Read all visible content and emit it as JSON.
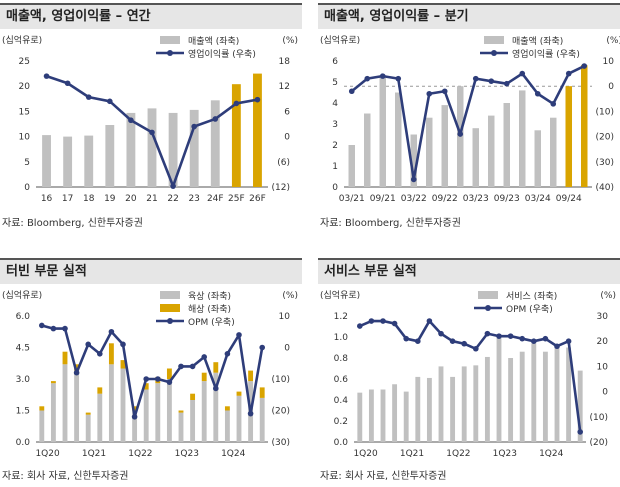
{
  "charts": [
    {
      "id": "c1",
      "title": "매출액, 영업이익률 – 연간",
      "unit_left": "(십억유로)",
      "unit_right": "(%)",
      "source": "자료: Bloomberg, 신한투자증권",
      "chart_data": {
        "type": "bar",
        "categories": [
          "16",
          "17",
          "18",
          "19",
          "20",
          "21",
          "22",
          "23",
          "24F",
          "25F",
          "26F"
        ],
        "ylim_left": [
          0,
          25
        ],
        "yticks_left": [
          0,
          5,
          10,
          15,
          20,
          25
        ],
        "ylim_right": [
          -12,
          18
        ],
        "yticks_right": [
          -12,
          -6,
          0,
          6,
          12,
          18
        ],
        "ytick_labels_right": [
          "(12)",
          "(6)",
          "0",
          "6",
          "12",
          "18"
        ],
        "series": [
          {
            "name": "매출액 (좌축)",
            "type": "bar",
            "axis": "left",
            "values": [
              10.3,
              10.0,
              10.2,
              12.3,
              14.7,
              15.6,
              14.7,
              15.3,
              17.2,
              20.4,
              22.5
            ],
            "colors": [
              "#c0c0c0",
              "#c0c0c0",
              "#c0c0c0",
              "#c0c0c0",
              "#c0c0c0",
              "#c0c0c0",
              "#c0c0c0",
              "#c0c0c0",
              "#c0c0c0",
              "#d9a400",
              "#d9a400"
            ]
          },
          {
            "name": "영업이익률 (우축)",
            "type": "line",
            "axis": "right",
            "color": "#2e3d7a",
            "values": [
              14.4,
              12.7,
              9.4,
              8.4,
              3.9,
              1.0,
              -11.8,
              2.4,
              4.2,
              7.9,
              8.8
            ]
          }
        ]
      }
    },
    {
      "id": "c2",
      "title": "매출액, 영업이익률 – 분기",
      "unit_left": "(십억유로)",
      "unit_right": "(%)",
      "source": "자료: Bloomberg, 신한투자증권",
      "chart_data": {
        "type": "bar",
        "categories": [
          "03/21",
          "06/21",
          "09/21",
          "12/21",
          "03/22",
          "06/22",
          "09/22",
          "12/22",
          "03/23",
          "06/23",
          "09/23",
          "12/23",
          "03/24",
          "06/24",
          "09/24",
          "12/24"
        ],
        "tick_labels": [
          "03/21",
          "09/21",
          "03/22",
          "09/22",
          "03/23",
          "09/23",
          "03/24",
          "09/24"
        ],
        "ylim_left": [
          0,
          6
        ],
        "yticks_left": [
          0,
          1,
          2,
          3,
          4,
          5,
          6
        ],
        "ylim_right": [
          -40,
          10
        ],
        "yticks_right": [
          -40,
          -30,
          -20,
          -10,
          0,
          10
        ],
        "ytick_labels_right": [
          "(40)",
          "(30)",
          "(20)",
          "(10)",
          "0",
          "10"
        ],
        "reference_line": {
          "axis": "right",
          "value": 0,
          "style": "dashed"
        },
        "series": [
          {
            "name": "매출액 (좌축)",
            "type": "bar",
            "axis": "left",
            "values": [
              2.0,
              3.5,
              5.2,
              4.5,
              2.5,
              3.3,
              3.9,
              4.8,
              2.8,
              3.4,
              4.0,
              4.6,
              2.7,
              3.3,
              4.8,
              5.8
            ],
            "colors": [
              "#c0c0c0",
              "#c0c0c0",
              "#c0c0c0",
              "#c0c0c0",
              "#c0c0c0",
              "#c0c0c0",
              "#c0c0c0",
              "#c0c0c0",
              "#c0c0c0",
              "#c0c0c0",
              "#c0c0c0",
              "#c0c0c0",
              "#c0c0c0",
              "#c0c0c0",
              "#d9a400",
              "#d9a400"
            ]
          },
          {
            "name": "영업이익률 (우축)",
            "type": "line",
            "axis": "right",
            "color": "#2e3d7a",
            "values": [
              -2,
              3,
              4,
              3,
              -37,
              -3,
              -2,
              -19,
              3,
              2,
              1,
              5,
              -3,
              -7,
              5,
              8
            ]
          }
        ]
      }
    },
    {
      "id": "c3",
      "title": "터빈 부문 실적",
      "unit_left": "(십억유로)",
      "unit_right": "(%)",
      "source": "자료: 회사 자료, 신한투자증권",
      "chart_data": {
        "type": "bar",
        "categories": [
          "1Q20",
          "2Q20",
          "3Q20",
          "4Q20",
          "1Q21",
          "2Q21",
          "3Q21",
          "4Q21",
          "1Q22",
          "2Q22",
          "3Q22",
          "4Q22",
          "1Q23",
          "2Q23",
          "3Q23",
          "4Q23",
          "1Q24",
          "2Q24",
          "3Q24",
          "4Q24"
        ],
        "tick_labels": [
          "1Q20",
          "",
          "",
          "",
          "1Q21",
          "",
          "",
          "",
          "1Q22",
          "",
          "",
          "",
          "1Q23",
          "",
          "",
          "",
          "1Q24",
          "",
          "",
          ""
        ],
        "ylim_left": [
          0,
          6.0
        ],
        "yticks_left": [
          0,
          1.5,
          3.0,
          4.5,
          6.0
        ],
        "ytick_labels_left": [
          "0.0",
          "1.5",
          "3.0",
          "4.5",
          "6.0"
        ],
        "ylim_right": [
          -30,
          10
        ],
        "yticks_right": [
          -30,
          -20,
          -10,
          0,
          10
        ],
        "ytick_labels_right": [
          "(30)",
          "(20)",
          "(10)",
          "0",
          "10"
        ],
        "stacked": true,
        "series": [
          {
            "name": "육상 (좌축)",
            "type": "bar",
            "axis": "left",
            "color": "#c0c0c0",
            "values": [
              1.5,
              2.8,
              3.7,
              3.4,
              1.3,
              2.3,
              3.7,
              3.5,
              1.5,
              2.5,
              2.8,
              3.0,
              1.4,
              2.0,
              2.9,
              3.3,
              1.5,
              2.2,
              2.9,
              2.1
            ]
          },
          {
            "name": "해상 (좌축)",
            "type": "bar",
            "axis": "left",
            "color": "#d9a400",
            "values": [
              0.2,
              0.1,
              0.6,
              0.3,
              0.1,
              0.3,
              1.0,
              0.4,
              0.2,
              0.3,
              0.3,
              0.5,
              0.1,
              0.3,
              0.4,
              0.5,
              0.2,
              0.2,
              0.5,
              0.5
            ]
          },
          {
            "name": "OPM (우축)",
            "type": "line",
            "axis": "right",
            "color": "#2e3d7a",
            "values": [
              7,
              6,
              6,
              -8,
              1,
              -2,
              5,
              1,
              -22,
              -10,
              -10,
              -11,
              -6,
              -6,
              -3,
              -13,
              -2,
              4,
              -21,
              0
            ]
          }
        ]
      }
    },
    {
      "id": "c4",
      "title": "서비스 부문 실적",
      "unit_left": "(십억유로)",
      "unit_right": "(%)",
      "source": "자료: 회사 자료, 신한투자증권",
      "chart_data": {
        "type": "bar",
        "categories": [
          "1Q20",
          "2Q20",
          "3Q20",
          "4Q20",
          "1Q21",
          "2Q21",
          "3Q21",
          "4Q21",
          "1Q22",
          "2Q22",
          "3Q22",
          "4Q22",
          "1Q23",
          "2Q23",
          "3Q23",
          "4Q23",
          "1Q24",
          "2Q24",
          "3Q24",
          "4Q24"
        ],
        "tick_labels": [
          "1Q20",
          "",
          "",
          "",
          "1Q21",
          "",
          "",
          "",
          "1Q22",
          "",
          "",
          "",
          "1Q23",
          "",
          "",
          "",
          "1Q24",
          "",
          "",
          ""
        ],
        "ylim_left": [
          0,
          1.2
        ],
        "yticks_left": [
          0,
          0.2,
          0.4,
          0.6,
          0.8,
          1.0,
          1.2
        ],
        "ytick_labels_left": [
          "0.0",
          "0.2",
          "0.4",
          "0.6",
          "0.8",
          "1.0",
          "1.2"
        ],
        "ylim_right": [
          -20,
          30
        ],
        "yticks_right": [
          -20,
          -10,
          0,
          10,
          20,
          30
        ],
        "ytick_labels_right": [
          "(20)",
          "(10)",
          "0",
          "10",
          "20",
          "30"
        ],
        "series": [
          {
            "name": "서비스 (좌축)",
            "type": "bar",
            "axis": "left",
            "color": "#c0c0c0",
            "values": [
              0.47,
              0.5,
              0.5,
              0.55,
              0.48,
              0.62,
              0.61,
              0.72,
              0.62,
              0.72,
              0.73,
              0.81,
              1.02,
              0.8,
              0.86,
              0.94,
              0.86,
              0.92,
              0.9,
              0.68
            ]
          },
          {
            "name": "OPM (우축)",
            "type": "line",
            "axis": "right",
            "color": "#2e3d7a",
            "values": [
              26,
              28,
              28,
              27,
              21,
              20,
              28,
              23,
              20,
              19,
              17,
              23,
              22,
              22,
              21,
              20,
              21,
              18,
              20,
              -16
            ]
          }
        ]
      }
    }
  ]
}
